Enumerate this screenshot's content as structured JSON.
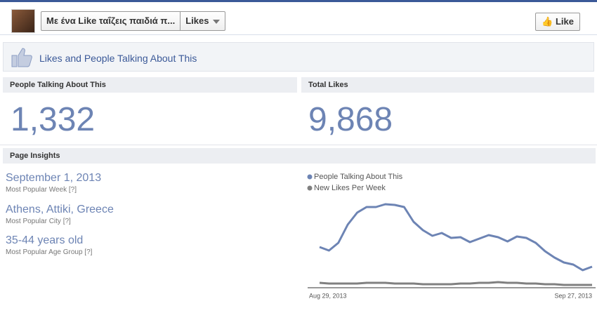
{
  "header": {
    "page_name": "Με ένα Like ταΐζεις παιδιά π...",
    "view": "Likes",
    "like_button": "Like"
  },
  "banner": {
    "title": "Likes and People Talking About This"
  },
  "stats": [
    {
      "label": "People Talking About This",
      "value": "1,332"
    },
    {
      "label": "Total Likes",
      "value": "9,868"
    }
  ],
  "insights": {
    "title": "Page Insights",
    "items": [
      {
        "value": "September 1, 2013",
        "label": "Most Popular Week [?]"
      },
      {
        "value": "Athens, Attiki, Greece",
        "label": "Most Popular City [?]"
      },
      {
        "value": "35-44 years old",
        "label": "Most Popular Age Group [?]"
      }
    ]
  },
  "chart_data": {
    "type": "line",
    "categories": [
      "Aug 29, 2013",
      null,
      null,
      null,
      null,
      null,
      null,
      null,
      null,
      null,
      null,
      null,
      null,
      null,
      null,
      null,
      null,
      null,
      null,
      null,
      null,
      null,
      null,
      null,
      null,
      null,
      null,
      null,
      null,
      "Sep 27, 2013"
    ],
    "series": [
      {
        "name": "People Talking About This",
        "color": "#6d84b4",
        "values": [
          58,
          53,
          64,
          90,
          107,
          115,
          115,
          119,
          118,
          115,
          94,
          82,
          74,
          78,
          71,
          72,
          65,
          70,
          75,
          72,
          66,
          73,
          71,
          64,
          52,
          43,
          36,
          33,
          25,
          30
        ]
      },
      {
        "name": "New Likes Per Week",
        "color": "#808080",
        "values": [
          7,
          6,
          6,
          6,
          6,
          7,
          7,
          7,
          6,
          6,
          6,
          5,
          5,
          5,
          5,
          6,
          6,
          7,
          7,
          8,
          7,
          7,
          6,
          6,
          5,
          5,
          4,
          4,
          4,
          4
        ]
      }
    ],
    "ylim": [
      0,
      130
    ]
  }
}
